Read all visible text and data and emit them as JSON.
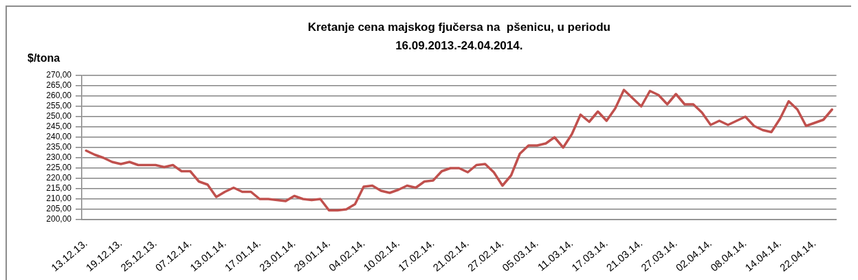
{
  "chart_data": {
    "type": "line",
    "title": "Kretanje cena majskog fjučersa na  pšenicu, u periodu\n16.09.2013.-24.04.2014.",
    "ylabel": "$/tona",
    "categories": [
      "13.12.13.",
      null,
      null,
      null,
      "19.12.13.",
      null,
      null,
      null,
      "25.12.13.",
      null,
      null,
      null,
      "07.12.14.",
      null,
      null,
      null,
      "13.01.14.",
      null,
      null,
      null,
      "17.01.14.",
      null,
      null,
      null,
      "23.01.14.",
      null,
      null,
      null,
      "29.01.14.",
      null,
      null,
      null,
      "04.02.14.",
      null,
      null,
      null,
      "10.02.14.",
      null,
      null,
      null,
      "17.02.14.",
      null,
      null,
      null,
      "21.02.14.",
      null,
      null,
      null,
      "27.02.14.",
      null,
      null,
      null,
      "05.03.14.",
      null,
      null,
      null,
      "11.03.14.",
      null,
      null,
      null,
      "17.03.14.",
      null,
      null,
      null,
      "21.03.14.",
      null,
      null,
      null,
      "27.03.14.",
      null,
      null,
      null,
      "02.04.14.",
      null,
      null,
      null,
      "08.04.14.",
      null,
      null,
      null,
      "14.04.14.",
      null,
      null,
      null,
      "22.04.14.",
      null,
      null
    ],
    "series": [
      {
        "color": "#c0504d",
        "values": [
          233.5,
          231.5,
          230,
          228,
          227,
          228,
          226.5,
          226.5,
          226.5,
          225.5,
          226.5,
          223.5,
          223.5,
          218.5,
          217,
          211,
          213.5,
          215.5,
          213.5,
          213.5,
          210,
          210,
          209.5,
          209,
          211.5,
          210,
          209.5,
          210,
          204.5,
          204.5,
          205,
          207.5,
          216,
          216.5,
          214,
          213,
          214.5,
          216.5,
          215.5,
          218.5,
          219,
          223.5,
          225,
          225,
          223,
          226.5,
          227,
          223,
          216.5,
          221.5,
          232,
          236,
          236,
          237,
          240,
          235,
          241.5,
          251,
          247.5,
          252.5,
          248,
          254,
          263,
          259,
          255,
          262.5,
          260.5,
          256,
          261,
          256,
          256,
          252,
          246,
          248,
          246,
          248,
          250,
          245.5,
          243.5,
          242.5,
          249,
          257.5,
          253.5,
          245.5,
          247,
          248.5,
          253.5
        ]
      }
    ],
    "ylim": [
      200,
      270
    ],
    "yticks": [
      {
        "value": 200,
        "label": "200,00"
      },
      {
        "value": 205,
        "label": "205,00"
      },
      {
        "value": 210,
        "label": "210,00"
      },
      {
        "value": 215,
        "label": "215,00"
      },
      {
        "value": 220,
        "label": "220,00"
      },
      {
        "value": 225,
        "label": "225,00"
      },
      {
        "value": 230,
        "label": "230,00"
      },
      {
        "value": 235,
        "label": "235,00"
      },
      {
        "value": 240,
        "label": "240,00"
      },
      {
        "value": 245,
        "label": "245,00"
      },
      {
        "value": 250,
        "label": "250,00"
      },
      {
        "value": 255,
        "label": "255,00"
      },
      {
        "value": 260,
        "label": "260,00"
      },
      {
        "value": 265,
        "label": "265,00"
      },
      {
        "value": 270,
        "label": "270,00"
      }
    ],
    "grid": "y",
    "marker": "none"
  }
}
